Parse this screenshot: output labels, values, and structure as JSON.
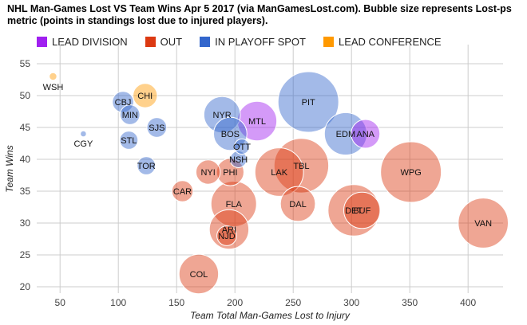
{
  "title": "NHL Man-Games Lost VS Team Wins Apr 5 2017 (via ManGamesLost.com). Bubble size represents Lost-ps metric (points in standings lost due to injured players).",
  "legend": [
    {
      "label": "LEAD DIVISION",
      "color": "#a020f0"
    },
    {
      "label": "OUT",
      "color": "#dc3912"
    },
    {
      "label": "IN PLAYOFF SPOT",
      "color": "#3366cc"
    },
    {
      "label": "LEAD CONFERENCE",
      "color": "#ff9900"
    }
  ],
  "chart_data": {
    "type": "scatter",
    "bubble": true,
    "title": "NHL Man-Games Lost VS Team Wins Apr 5 2017 (via ManGamesLost.com). Bubble size represents Lost-ps metric (points in standings lost due to injured players).",
    "xlabel": "Team Total Man-Games Lost to Injury",
    "ylabel": "Team Wins",
    "xlim": [
      30,
      430
    ],
    "ylim": [
      19,
      58
    ],
    "x_ticks": [
      50,
      100,
      150,
      200,
      250,
      300,
      350,
      400
    ],
    "y_ticks": [
      20,
      25,
      30,
      35,
      40,
      45,
      50,
      55
    ],
    "grid": true,
    "legend_position": "top",
    "groups": {
      "LEAD DIVISION": "#a020f0",
      "OUT": "#dc3912",
      "IN PLAYOFF SPOT": "#3366cc",
      "LEAD CONFERENCE": "#ff9900"
    },
    "points": [
      {
        "team": "WSH",
        "x": 44,
        "y": 53,
        "size": 0.5,
        "group": "LEAD CONFERENCE"
      },
      {
        "team": "CHI",
        "x": 123,
        "y": 50,
        "size": 1.6,
        "group": "LEAD CONFERENCE"
      },
      {
        "team": "CBJ",
        "x": 104,
        "y": 49,
        "size": 1.4,
        "group": "IN PLAYOFF SPOT"
      },
      {
        "team": "MIN",
        "x": 110,
        "y": 47,
        "size": 1.3,
        "group": "IN PLAYOFF SPOT"
      },
      {
        "team": "SJS",
        "x": 133,
        "y": 45,
        "size": 1.3,
        "group": "IN PLAYOFF SPOT"
      },
      {
        "team": "STL",
        "x": 109,
        "y": 43,
        "size": 1.2,
        "group": "IN PLAYOFF SPOT"
      },
      {
        "team": "CGY",
        "x": 70,
        "y": 44,
        "size": 0.4,
        "group": "IN PLAYOFF SPOT"
      },
      {
        "team": "TOR",
        "x": 124,
        "y": 39,
        "size": 1.2,
        "group": "IN PLAYOFF SPOT"
      },
      {
        "team": "NYR",
        "x": 189,
        "y": 47,
        "size": 2.4,
        "group": "IN PLAYOFF SPOT"
      },
      {
        "team": "BOS",
        "x": 196,
        "y": 44,
        "size": 2.2,
        "group": "IN PLAYOFF SPOT"
      },
      {
        "team": "MTL",
        "x": 219,
        "y": 46,
        "size": 2.6,
        "group": "LEAD DIVISION"
      },
      {
        "team": "PIT",
        "x": 263,
        "y": 49,
        "size": 4.0,
        "group": "IN PLAYOFF SPOT"
      },
      {
        "team": "OTT",
        "x": 206,
        "y": 42,
        "size": 1.0,
        "group": "IN PLAYOFF SPOT"
      },
      {
        "team": "NSH",
        "x": 203,
        "y": 40,
        "size": 1.1,
        "group": "IN PLAYOFF SPOT"
      },
      {
        "team": "EDM",
        "x": 295,
        "y": 44,
        "size": 2.8,
        "group": "IN PLAYOFF SPOT"
      },
      {
        "team": "ANA",
        "x": 312,
        "y": 44,
        "size": 1.9,
        "group": "LEAD DIVISION"
      },
      {
        "team": "NYI",
        "x": 177,
        "y": 38,
        "size": 1.6,
        "group": "OUT"
      },
      {
        "team": "PHI",
        "x": 196,
        "y": 38,
        "size": 1.8,
        "group": "OUT"
      },
      {
        "team": "LAK",
        "x": 238,
        "y": 38,
        "size": 3.2,
        "group": "OUT"
      },
      {
        "team": "TBL",
        "x": 257,
        "y": 39,
        "size": 3.6,
        "group": "OUT"
      },
      {
        "team": "WPG",
        "x": 351,
        "y": 38,
        "size": 4.0,
        "group": "OUT"
      },
      {
        "team": "CAR",
        "x": 155,
        "y": 35,
        "size": 1.4,
        "group": "OUT"
      },
      {
        "team": "FLA",
        "x": 199,
        "y": 33,
        "size": 3.0,
        "group": "OUT"
      },
      {
        "team": "DAL",
        "x": 254,
        "y": 33,
        "size": 2.3,
        "group": "OUT"
      },
      {
        "team": "DET",
        "x": 302,
        "y": 32,
        "size": 3.4,
        "group": "OUT"
      },
      {
        "team": "BUF",
        "x": 309,
        "y": 32,
        "size": 2.4,
        "group": "OUT"
      },
      {
        "team": "VAN",
        "x": 413,
        "y": 30,
        "size": 3.3,
        "group": "OUT"
      },
      {
        "team": "ARI",
        "x": 195,
        "y": 29,
        "size": 2.6,
        "group": "OUT"
      },
      {
        "team": "NJD",
        "x": 193,
        "y": 28,
        "size": 1.3,
        "group": "OUT"
      },
      {
        "team": "COL",
        "x": 169,
        "y": 22,
        "size": 2.6,
        "group": "OUT"
      }
    ]
  }
}
